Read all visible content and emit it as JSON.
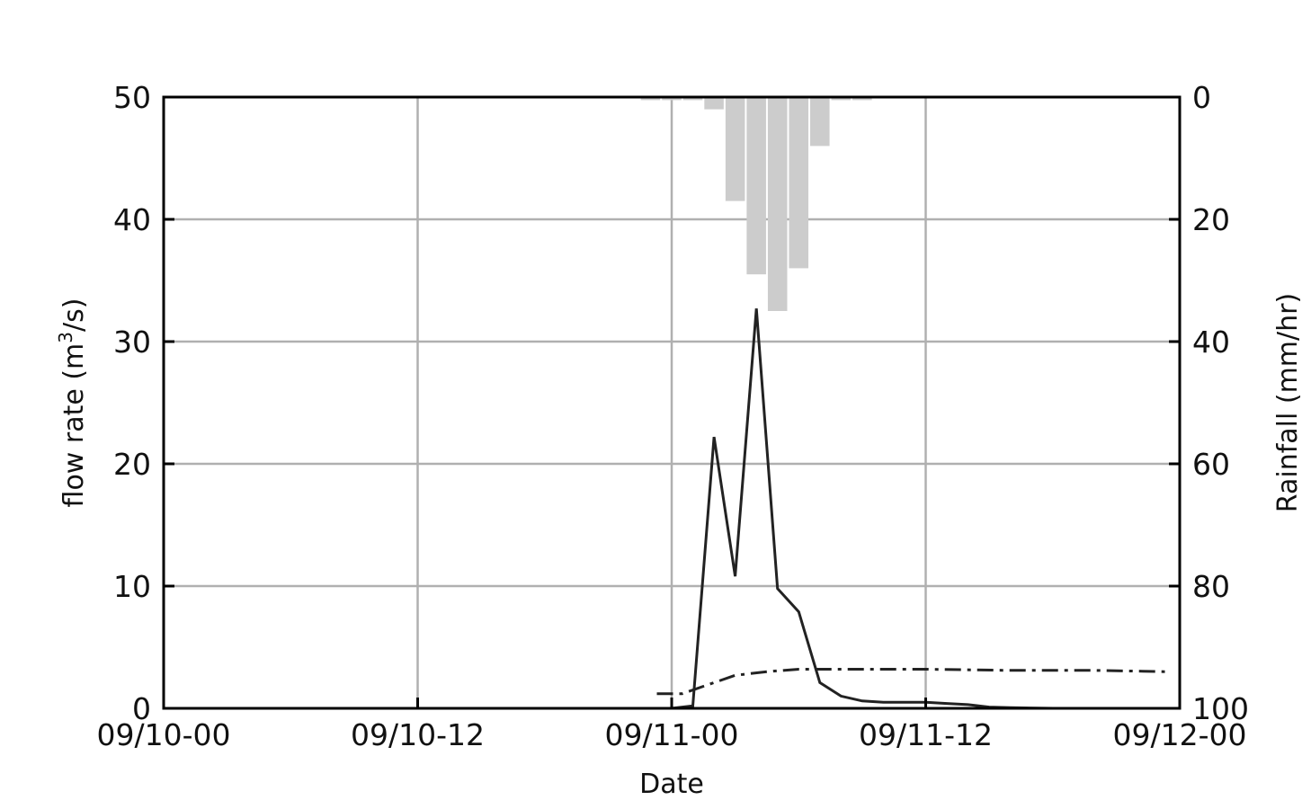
{
  "chart_data": {
    "type": "line",
    "xlabel": "Date",
    "ylabel_left": "flow rate (m",
    "ylabel_left_sup": "3",
    "ylabel_left_end": "/s)",
    "ylabel_right": "Rainfall (mm/hr)",
    "x_unit": "hours",
    "xlim": [
      0,
      48
    ],
    "x_ticks": [
      {
        "value": 0,
        "label": "09/10-00"
      },
      {
        "value": 12,
        "label": "09/10-12"
      },
      {
        "value": 24,
        "label": "09/11-00"
      },
      {
        "value": 36,
        "label": "09/11-12"
      },
      {
        "value": 48,
        "label": "09/12-00"
      }
    ],
    "ylim_left": [
      0,
      50
    ],
    "y_ticks_left": [
      0,
      10,
      20,
      30,
      40,
      50
    ],
    "ylim_right": [
      0,
      100
    ],
    "y_ticks_right": [
      0,
      20,
      40,
      60,
      80,
      100
    ],
    "right_axis_inverted": true,
    "grid": true,
    "series": [
      {
        "style": "solid",
        "color": "#222222",
        "points": [
          [
            0,
            0
          ],
          [
            24,
            0
          ],
          [
            25,
            0.2
          ],
          [
            26,
            22.2
          ],
          [
            27,
            10.8
          ],
          [
            28,
            32.7
          ],
          [
            29,
            9.8
          ],
          [
            30,
            7.9
          ],
          [
            31,
            2.1
          ],
          [
            32,
            1
          ],
          [
            33,
            0.6
          ],
          [
            34,
            0.5
          ],
          [
            35,
            0.5
          ],
          [
            36,
            0.5
          ],
          [
            37,
            0.4
          ],
          [
            38,
            0.3
          ],
          [
            39,
            0.1
          ],
          [
            40,
            0.05
          ],
          [
            42,
            0
          ],
          [
            44,
            0
          ],
          [
            46,
            0
          ],
          [
            48,
            0
          ]
        ]
      },
      {
        "style": "dashdot",
        "color": "#222222",
        "points": [
          [
            23.3,
            1.2
          ],
          [
            24.5,
            1.2
          ],
          [
            25.5,
            1.8
          ],
          [
            27,
            2.7
          ],
          [
            28.5,
            3
          ],
          [
            30,
            3.2
          ],
          [
            31,
            3.2
          ],
          [
            33,
            3.2
          ],
          [
            36,
            3.2
          ],
          [
            40,
            3.1
          ],
          [
            44,
            3.1
          ],
          [
            47.3,
            3
          ]
        ]
      }
    ],
    "rainfall": {
      "color": "#cccccc",
      "bars": [
        {
          "x": 23,
          "value": 0.5
        },
        {
          "x": 24,
          "value": 0.5
        },
        {
          "x": 25,
          "value": 0.5
        },
        {
          "x": 26,
          "value": 2
        },
        {
          "x": 27,
          "value": 17
        },
        {
          "x": 28,
          "value": 29
        },
        {
          "x": 29,
          "value": 35
        },
        {
          "x": 30,
          "value": 28
        },
        {
          "x": 31,
          "value": 8
        },
        {
          "x": 32,
          "value": 0.5
        },
        {
          "x": 33,
          "value": 0.5
        }
      ]
    }
  }
}
